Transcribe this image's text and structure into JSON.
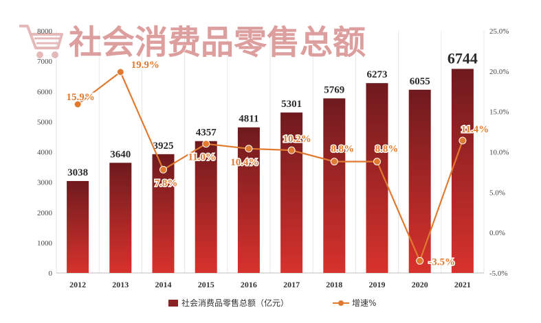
{
  "chart_data": {
    "type": "bar",
    "title": "社会消费品零售总额",
    "categories": [
      "2012",
      "2013",
      "2014",
      "2015",
      "2016",
      "2017",
      "2018",
      "2019",
      "2020",
      "2021"
    ],
    "series": [
      {
        "name": "社会消费品零售总额（亿元）",
        "type": "bar",
        "axis": "left",
        "values": [
          3038,
          3640,
          3925,
          4357,
          4811,
          5301,
          5769,
          6273,
          6055,
          6744
        ],
        "labels": [
          "3038",
          "3640",
          "3925",
          "4357",
          "4811",
          "5301",
          "5769",
          "6273",
          "6055",
          "6744"
        ]
      },
      {
        "name": "增速%",
        "type": "line",
        "axis": "right",
        "values": [
          15.9,
          19.9,
          7.8,
          11.0,
          10.4,
          10.2,
          8.8,
          8.8,
          -3.5,
          11.4
        ],
        "labels": [
          "15.9%",
          "19.9%",
          "7.8%",
          "11.0%",
          "10.4%",
          "10.2%",
          "8.8%",
          "8.8%",
          "-3.5%",
          "11.4%"
        ]
      }
    ],
    "y_left": {
      "range": [
        0,
        8000
      ],
      "ticks": [
        "0",
        "1000",
        "2000",
        "3000",
        "4000",
        "5000",
        "6000",
        "7000",
        "8000"
      ]
    },
    "y_right": {
      "range": [
        -5,
        25
      ],
      "ticks": [
        "-5.0%",
        "0.0%",
        "5.0%",
        "10.0%",
        "15.0%",
        "20.0%",
        "25.0%"
      ]
    },
    "grid": true,
    "legend_position": "bottom",
    "colors": {
      "bar_top": "#6e1a1e",
      "bar_bottom": "#d8322c",
      "line": "#e07a30",
      "label": "#e07a30",
      "bar_label": "#2a2a2a",
      "title": "#d88e8e"
    },
    "icons": [
      "shopping-cart-icon"
    ]
  }
}
